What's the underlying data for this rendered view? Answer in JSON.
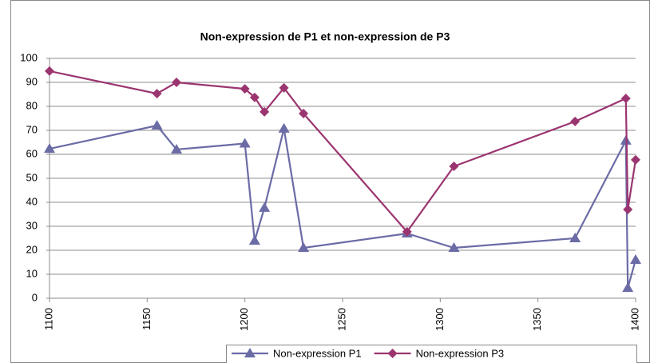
{
  "chart_data": {
    "type": "line",
    "title": "Non-expression de P1 et non-expression de P3",
    "x": [
      1100,
      1155,
      1165,
      1200,
      1205,
      1210,
      1220,
      1230,
      1283,
      1307,
      1369,
      1395,
      1396,
      1400
    ],
    "series": [
      {
        "name": "Non-expression P1",
        "color": "#6b6ba6",
        "marker": "triangle",
        "values": [
          62.3,
          72,
          62,
          64.5,
          24,
          37.7,
          70.7,
          21,
          27,
          21,
          25,
          65.7,
          4.3,
          16
        ]
      },
      {
        "name": "Non-expression P3",
        "color": "#9b3570",
        "marker": "diamond",
        "values": [
          94.7,
          85.3,
          90,
          87.3,
          83.7,
          77.7,
          87.7,
          77,
          27.7,
          55,
          73.7,
          83.3,
          37,
          57.7
        ]
      }
    ],
    "xlim": [
      1100,
      1400
    ],
    "xticks": [
      1100,
      1150,
      1200,
      1250,
      1300,
      1350,
      1400
    ],
    "ylim": [
      0,
      100
    ],
    "yticks": [
      0,
      10,
      20,
      30,
      40,
      50,
      60,
      70,
      80,
      90,
      100
    ],
    "grid": true,
    "legend": "bottom"
  }
}
